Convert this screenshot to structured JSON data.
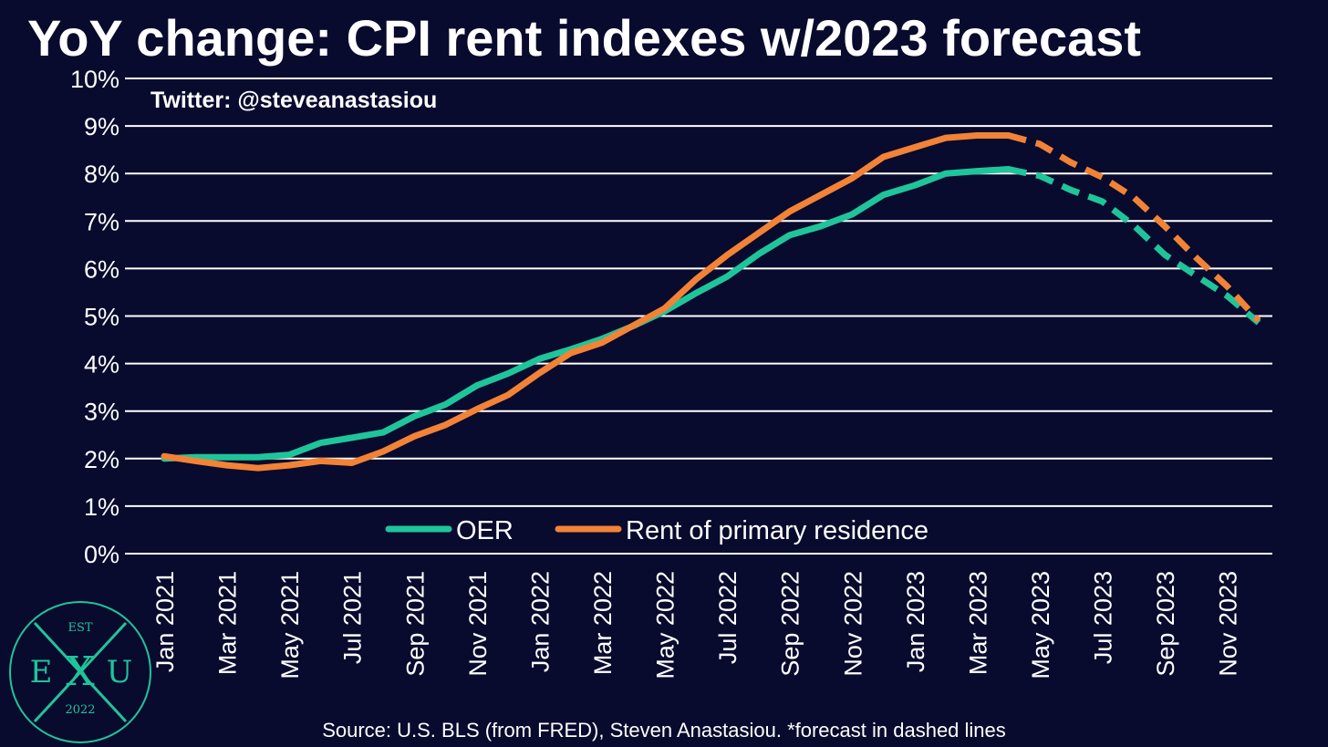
{
  "title": "YoY change: CPI rent indexes w/2023 forecast",
  "handle": "Twitter: @steveanastasiou",
  "source": "Source: U.S. BLS (from FRED), Steven Anastasiou. *forecast in dashed lines",
  "logo": {
    "top_text": "EST",
    "left_letter": "E",
    "center_letter": "X",
    "right_letter": "U",
    "bottom_text": "2022",
    "color": "#1fc59a"
  },
  "chart_data": {
    "type": "line",
    "x": [
      "Jan 2021",
      "Feb 2021",
      "Mar 2021",
      "Apr 2021",
      "May 2021",
      "Jun 2021",
      "Jul 2021",
      "Aug 2021",
      "Sep 2021",
      "Oct 2021",
      "Nov 2021",
      "Dec 2021",
      "Jan 2022",
      "Feb 2022",
      "Mar 2022",
      "Apr 2022",
      "May 2022",
      "Jun 2022",
      "Jul 2022",
      "Aug 2022",
      "Sep 2022",
      "Oct 2022",
      "Nov 2022",
      "Dec 2022",
      "Jan 2023",
      "Feb 2023",
      "Mar 2023",
      "Apr 2023",
      "May 2023",
      "Jun 2023",
      "Jul 2023",
      "Aug 2023",
      "Sep 2023",
      "Oct 2023",
      "Nov 2023",
      "Dec 2023"
    ],
    "x_tick_labels": [
      "Jan 2021",
      "Mar 2021",
      "May 2021",
      "Jul 2021",
      "Sep 2021",
      "Nov 2021",
      "Jan 2022",
      "Mar 2022",
      "May 2022",
      "Jul 2022",
      "Sep 2022",
      "Nov 2022",
      "Jan 2023",
      "Mar 2023",
      "May 2023",
      "Jul 2023",
      "Sep 2023",
      "Nov 2023"
    ],
    "y_tick_labels": [
      "0%",
      "1%",
      "2%",
      "3%",
      "4%",
      "5%",
      "6%",
      "7%",
      "8%",
      "9%",
      "10%"
    ],
    "ylim": [
      0,
      10
    ],
    "grid": true,
    "legend_position": "bottom-center",
    "forecast_start": "Apr 2023",
    "series": [
      {
        "name": "OER",
        "color": "#1fc59a",
        "values": [
          2.0,
          2.03,
          2.03,
          2.03,
          2.08,
          2.33,
          2.44,
          2.55,
          2.89,
          3.14,
          3.54,
          3.79,
          4.1,
          4.3,
          4.52,
          4.79,
          5.1,
          5.48,
          5.83,
          6.3,
          6.7,
          6.89,
          7.14,
          7.55,
          7.75,
          8.0,
          8.05,
          8.09,
          7.95,
          7.65,
          7.41,
          6.91,
          6.29,
          5.85,
          5.42,
          4.86
        ]
      },
      {
        "name": "Rent of primary residence",
        "color": "#f28236",
        "values": [
          2.05,
          1.95,
          1.86,
          1.8,
          1.86,
          1.95,
          1.91,
          2.15,
          2.47,
          2.71,
          3.04,
          3.34,
          3.8,
          4.22,
          4.44,
          4.8,
          5.16,
          5.77,
          6.28,
          6.74,
          7.2,
          7.55,
          7.9,
          8.35,
          8.55,
          8.75,
          8.8,
          8.8,
          8.62,
          8.23,
          7.92,
          7.5,
          6.89,
          6.23,
          5.62,
          4.9
        ]
      }
    ]
  }
}
